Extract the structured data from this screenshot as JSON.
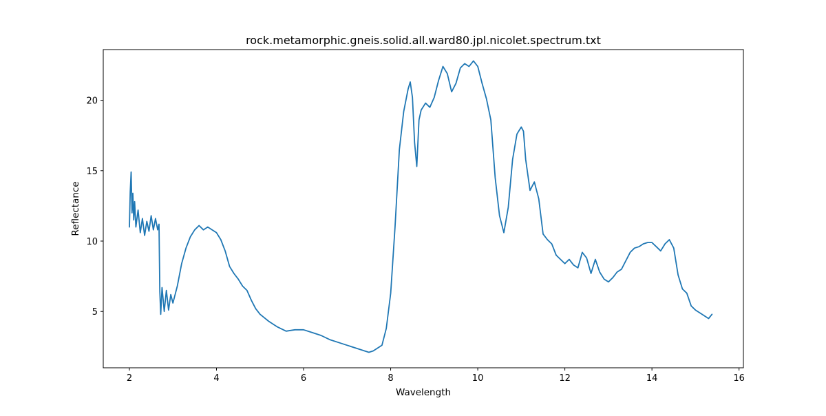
{
  "chart_data": {
    "type": "line",
    "title": "rock.metamorphic.gneis.solid.all.ward80.jpl.nicolet.spectrum.txt",
    "xlabel": "Wavelength",
    "ylabel": "Reflectance",
    "xlim": [
      1.4,
      16.1
    ],
    "ylim": [
      1.0,
      23.6
    ],
    "xticks": [
      2,
      4,
      6,
      8,
      10,
      12,
      14,
      16
    ],
    "yticks": [
      5,
      10,
      15,
      20
    ],
    "xtick_labels": [
      "2",
      "4",
      "6",
      "8",
      "10",
      "12",
      "14",
      "16"
    ],
    "ytick_labels": [
      "5",
      "10",
      "15",
      "20"
    ],
    "grid": false,
    "series": [
      {
        "color": "#1f77b4",
        "x": [
          2.0,
          2.02,
          2.04,
          2.06,
          2.08,
          2.1,
          2.12,
          2.15,
          2.2,
          2.25,
          2.3,
          2.35,
          2.4,
          2.45,
          2.5,
          2.55,
          2.6,
          2.65,
          2.68,
          2.7,
          2.72,
          2.75,
          2.8,
          2.85,
          2.9,
          2.95,
          3.0,
          3.1,
          3.2,
          3.3,
          3.4,
          3.5,
          3.6,
          3.7,
          3.8,
          3.9,
          4.0,
          4.1,
          4.2,
          4.3,
          4.4,
          4.5,
          4.6,
          4.7,
          4.8,
          4.9,
          5.0,
          5.2,
          5.4,
          5.6,
          5.8,
          6.0,
          6.2,
          6.4,
          6.6,
          6.8,
          7.0,
          7.2,
          7.4,
          7.5,
          7.6,
          7.7,
          7.8,
          7.9,
          8.0,
          8.1,
          8.2,
          8.3,
          8.4,
          8.45,
          8.5,
          8.55,
          8.6,
          8.65,
          8.7,
          8.8,
          8.9,
          9.0,
          9.1,
          9.2,
          9.3,
          9.4,
          9.5,
          9.6,
          9.7,
          9.8,
          9.9,
          10.0,
          10.1,
          10.2,
          10.3,
          10.4,
          10.5,
          10.6,
          10.7,
          10.8,
          10.9,
          11.0,
          11.05,
          11.1,
          11.2,
          11.3,
          11.4,
          11.5,
          11.6,
          11.7,
          11.8,
          11.9,
          12.0,
          12.1,
          12.2,
          12.3,
          12.4,
          12.5,
          12.6,
          12.7,
          12.8,
          12.9,
          13.0,
          13.1,
          13.2,
          13.3,
          13.4,
          13.5,
          13.6,
          13.7,
          13.8,
          13.9,
          14.0,
          14.1,
          14.2,
          14.3,
          14.4,
          14.5,
          14.6,
          14.7,
          14.8,
          14.9,
          15.0,
          15.1,
          15.2,
          15.3,
          15.38
        ],
        "y": [
          11.0,
          13.5,
          14.9,
          12.0,
          13.4,
          11.5,
          12.8,
          11.0,
          12.2,
          10.6,
          11.6,
          10.4,
          11.4,
          10.7,
          11.8,
          10.8,
          11.6,
          10.8,
          11.2,
          6.4,
          4.8,
          6.7,
          5.0,
          6.5,
          5.1,
          6.2,
          5.6,
          6.8,
          8.4,
          9.5,
          10.3,
          10.8,
          11.1,
          10.8,
          11.0,
          10.8,
          10.6,
          10.1,
          9.3,
          8.2,
          7.7,
          7.3,
          6.8,
          6.5,
          5.8,
          5.2,
          4.8,
          4.3,
          3.9,
          3.6,
          3.7,
          3.7,
          3.5,
          3.3,
          3.0,
          2.8,
          2.6,
          2.4,
          2.2,
          2.1,
          2.2,
          2.4,
          2.6,
          3.8,
          6.3,
          11.0,
          16.5,
          19.2,
          20.8,
          21.3,
          20.2,
          17.0,
          15.3,
          18.6,
          19.3,
          19.8,
          19.5,
          20.2,
          21.4,
          22.4,
          21.9,
          20.6,
          21.2,
          22.3,
          22.6,
          22.4,
          22.8,
          22.4,
          21.2,
          20.1,
          18.6,
          14.5,
          11.8,
          10.6,
          12.4,
          15.8,
          17.6,
          18.1,
          17.8,
          15.8,
          13.6,
          14.2,
          13.0,
          10.5,
          10.1,
          9.8,
          9.0,
          8.7,
          8.4,
          8.7,
          8.3,
          8.1,
          9.2,
          8.8,
          7.7,
          8.7,
          7.8,
          7.3,
          7.1,
          7.4,
          7.8,
          8.0,
          8.6,
          9.2,
          9.5,
          9.6,
          9.8,
          9.9,
          9.9,
          9.6,
          9.3,
          9.8,
          10.1,
          9.5,
          7.6,
          6.6,
          6.3,
          5.4,
          5.1,
          4.9,
          4.7,
          4.5,
          4.8
        ]
      }
    ]
  }
}
